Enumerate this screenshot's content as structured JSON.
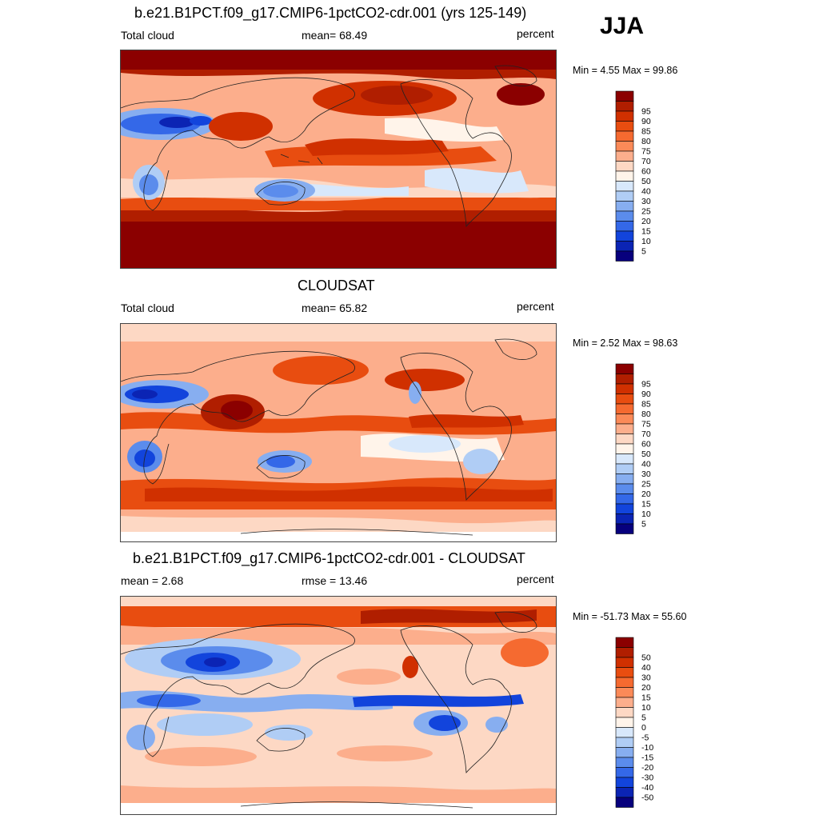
{
  "season": "JJA",
  "panels": [
    {
      "id": "model",
      "title": "b.e21.B1PCT.f09_g17.CMIP6-1pctCO2-cdr.001 (yrs 125-149)",
      "left_label": "Total cloud",
      "center_label": "mean=  68.49",
      "right_label": "percent",
      "minmax": "Min =   4.55 Max =  99.86"
    },
    {
      "id": "obs",
      "title": "CLOUDSAT",
      "left_label": "Total cloud",
      "center_label": "mean=  65.82",
      "right_label": "percent",
      "minmax": "Min =   2.52 Max =  98.63"
    },
    {
      "id": "diff",
      "title": "b.e21.B1PCT.f09_g17.CMIP6-1pctCO2-cdr.001 - CLOUDSAT",
      "left_label": "mean =   2.68",
      "center_label": "rmse =  13.46",
      "right_label": "percent",
      "minmax": "Min = -51.73 Max =  55.60"
    }
  ],
  "colorbars": {
    "absolute": {
      "labels": [
        "95",
        "90",
        "85",
        "80",
        "75",
        "70",
        "60",
        "50",
        "40",
        "30",
        "25",
        "20",
        "15",
        "10",
        "5"
      ],
      "colors": [
        "#8b0000",
        "#b01e00",
        "#d03000",
        "#e84d10",
        "#f56a30",
        "#fb8a58",
        "#fcae8c",
        "#fdd8c4",
        "#fff4ea",
        "#d8e8fb",
        "#b0cdf5",
        "#87aef0",
        "#5b8cec",
        "#3468e8",
        "#1244dc",
        "#0b24b4",
        "#07007d"
      ]
    },
    "difference": {
      "labels": [
        "50",
        "40",
        "30",
        "20",
        "15",
        "10",
        "5",
        "0",
        "-5",
        "-10",
        "-15",
        "-20",
        "-30",
        "-40",
        "-50"
      ],
      "colors": [
        "#8b0000",
        "#b01e00",
        "#d03000",
        "#e84d10",
        "#f56a30",
        "#fb8a58",
        "#fcae8c",
        "#fdd8c4",
        "#fff4ea",
        "#d8e8fb",
        "#b0cdf5",
        "#87aef0",
        "#5b8cec",
        "#3468e8",
        "#1244dc",
        "#0b24b4",
        "#07007d"
      ]
    }
  }
}
